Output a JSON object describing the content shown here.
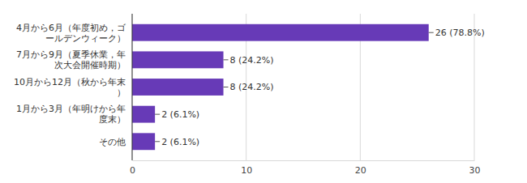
{
  "chart_data": {
    "type": "bar",
    "orientation": "horizontal",
    "categories": [
      "4月から6月（年度初め，ゴールデンウィーク）",
      "7月から9月（夏季休業，年次大会開催時期）",
      "10月から12月（秋から年末）",
      "1月から3月（年明けから年度末）",
      "その他"
    ],
    "values": [
      26,
      8,
      8,
      2,
      2
    ],
    "value_labels": [
      "26 (78.8%)",
      "8 (24.2%)",
      "8 (24.2%)",
      "2 (6.1%)",
      "2 (6.1%)"
    ],
    "color": "#673ab7",
    "xlim": [
      0,
      30
    ],
    "xticks": [
      0,
      10,
      20,
      30
    ],
    "grid": true,
    "data_labels": true
  }
}
